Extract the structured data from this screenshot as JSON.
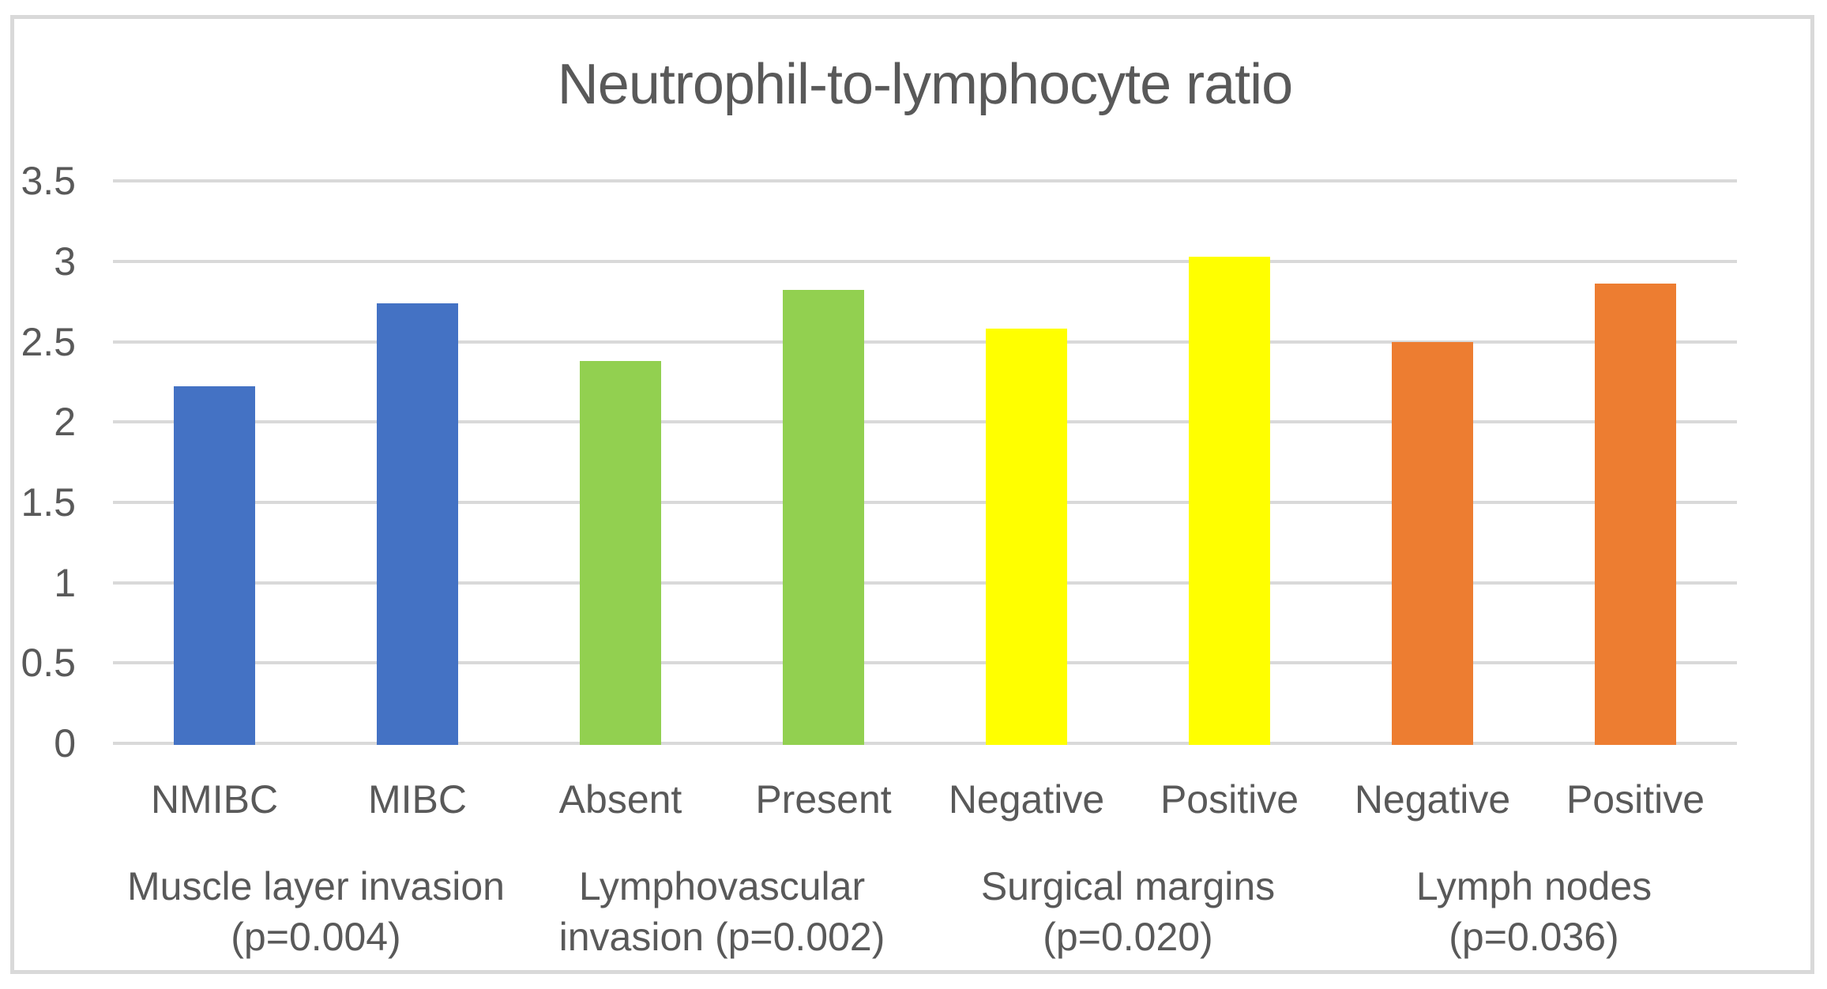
{
  "chart_data": {
    "type": "bar",
    "title": "Neutrophil-to-lymphocyte ratio",
    "categories": [
      "NMIBC",
      "MIBC",
      "Absent",
      "Present",
      "Negative",
      "Positive",
      "Negative",
      "Positive"
    ],
    "values": [
      2.22,
      2.74,
      2.38,
      2.82,
      2.58,
      3.03,
      2.5,
      2.86
    ],
    "bar_colors": [
      "#4472C4",
      "#4472C4",
      "#92D050",
      "#92D050",
      "#FFFF00",
      "#FFFF00",
      "#ED7D31",
      "#ED7D31"
    ],
    "groups": [
      {
        "line1": "Muscle layer invasion",
        "line2": "(p=0.004)"
      },
      {
        "line1": "Lymphovascular",
        "line2": "invasion (p=0.002)"
      },
      {
        "line1": "Surgical margins",
        "line2": "(p=0.020)"
      },
      {
        "line1": "Lymph nodes",
        "line2": "(p=0.036)"
      }
    ],
    "y_tick_labels": [
      "0",
      "0.5",
      "1",
      "1.5",
      "2",
      "2.5",
      "3",
      "3.5"
    ],
    "y_ticks": [
      0,
      0.5,
      1,
      1.5,
      2,
      2.5,
      3,
      3.5
    ],
    "ylim": [
      0,
      3.5
    ],
    "xlabel": "",
    "ylabel": "",
    "grid": true,
    "legend": false,
    "colors": {
      "text": "#595959",
      "gridline": "#D9D9D9",
      "frame_border": "#D9D9D9",
      "background": "#FFFFFF"
    }
  }
}
